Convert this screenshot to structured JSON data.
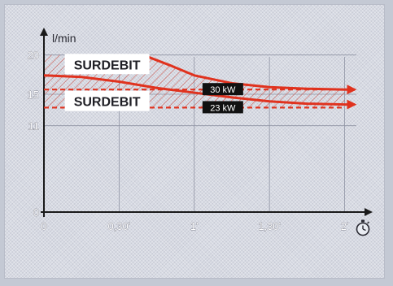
{
  "chart_data": {
    "type": "line",
    "title": "",
    "xlabel": "",
    "ylabel": "l/min",
    "x_ticks": [
      "0",
      "0,30'",
      "1'",
      "1,30'",
      "2'"
    ],
    "x_tick_values": [
      0,
      0.5,
      1,
      1.5,
      2
    ],
    "y_ticks": [
      "0",
      "11",
      "15",
      "20"
    ],
    "y_tick_values": [
      0,
      11,
      15,
      20
    ],
    "xlim": [
      0,
      2.1
    ],
    "ylim": [
      0,
      21
    ],
    "grid": true,
    "series": [
      {
        "name": "30 kW",
        "x": [
          0.66,
          0.85,
          1.0,
          1.25,
          1.5,
          1.75,
          2.0
        ],
        "y": [
          20.0,
          18.6,
          17.4,
          16.4,
          15.9,
          15.7,
          15.6
        ],
        "limit": 15.6
      },
      {
        "name": "23 kW",
        "x": [
          0,
          0.25,
          0.5,
          0.75,
          1.0,
          1.25,
          1.5,
          1.75,
          2.0
        ],
        "y": [
          17.4,
          17.2,
          16.6,
          15.8,
          15.2,
          14.6,
          14.1,
          13.8,
          13.7
        ],
        "limit": 13.3
      }
    ],
    "annotations": [
      {
        "text": "SURDEBIT",
        "x": 0.42,
        "y": 18.8
      },
      {
        "text": "SURDEBIT",
        "x": 0.42,
        "y": 14.1
      }
    ],
    "colors": {
      "curve": "#e0321e",
      "hatch": "#c9463a",
      "axis": "#1a1a1a",
      "label_box": "#111111"
    },
    "icon": "stopwatch-icon"
  }
}
